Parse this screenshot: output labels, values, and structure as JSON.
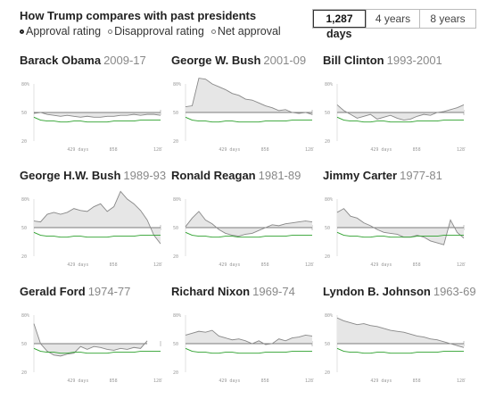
{
  "header": {
    "title": "How Trump compares with past presidents",
    "radios": [
      {
        "label": "Approval rating",
        "selected": true
      },
      {
        "label": "Disapproval rating",
        "selected": false
      },
      {
        "label": "Net approval",
        "selected": false
      }
    ],
    "toggle": [
      {
        "label": "1,287",
        "selected": true
      },
      {
        "label": "4 years",
        "selected": false
      },
      {
        "label": "8 years",
        "selected": false
      }
    ],
    "days_label": "days"
  },
  "colors": {
    "president_line": "#888888",
    "trump_line": "#2ca02c",
    "fill": "#e6e6e6",
    "axis": "#555555"
  },
  "chart_data": [
    {
      "type": "line",
      "name": "Barack Obama",
      "years": "2009-17",
      "ylim": [
        20,
        80
      ],
      "y_ticks": [
        "80%",
        "50",
        "20"
      ],
      "x_ticks": [
        "429 days",
        "858",
        "1287"
      ],
      "series": [
        {
          "values": [
            49,
            50,
            48,
            47,
            46,
            47,
            46,
            45,
            46,
            45,
            45,
            46,
            46,
            47,
            47,
            48,
            47,
            48,
            48,
            47
          ]
        },
        {
          "values": [
            45,
            42,
            41,
            41,
            40,
            40,
            41,
            41,
            40,
            40,
            40,
            40,
            41,
            41,
            41,
            41,
            42,
            42,
            42,
            42
          ]
        }
      ]
    },
    {
      "type": "line",
      "name": "George W. Bush",
      "years": "2001-09",
      "ylim": [
        20,
        80
      ],
      "y_ticks": [
        "80%",
        "50",
        "20"
      ],
      "x_ticks": [
        "429 days",
        "858",
        "1287"
      ],
      "series": [
        {
          "values": [
            56,
            57,
            86,
            85,
            80,
            77,
            74,
            70,
            68,
            64,
            63,
            60,
            57,
            55,
            52,
            53,
            50,
            49,
            50,
            48
          ]
        },
        {
          "values": [
            45,
            42,
            41,
            41,
            40,
            40,
            41,
            41,
            40,
            40,
            40,
            40,
            41,
            41,
            41,
            41,
            42,
            42,
            42,
            42
          ]
        }
      ]
    },
    {
      "type": "line",
      "name": "Bill Clinton",
      "years": "1993-2001",
      "ylim": [
        20,
        80
      ],
      "y_ticks": [
        "80%",
        "50",
        "20"
      ],
      "x_ticks": [
        "429 days",
        "858",
        "1287"
      ],
      "series": [
        {
          "values": [
            58,
            52,
            48,
            44,
            46,
            48,
            43,
            45,
            47,
            44,
            42,
            43,
            46,
            48,
            47,
            50,
            51,
            53,
            55,
            58
          ]
        },
        {
          "values": [
            45,
            42,
            41,
            41,
            40,
            40,
            41,
            41,
            40,
            40,
            40,
            40,
            41,
            41,
            41,
            41,
            42,
            42,
            42,
            42
          ]
        }
      ]
    },
    {
      "type": "line",
      "name": "George H.W. Bush",
      "years": "1989-93",
      "ylim": [
        20,
        80
      ],
      "y_ticks": [
        "80%",
        "50",
        "20"
      ],
      "x_ticks": [
        "429 days",
        "858",
        "1287"
      ],
      "series": [
        {
          "values": [
            57,
            56,
            64,
            66,
            64,
            66,
            70,
            68,
            67,
            72,
            75,
            67,
            72,
            88,
            80,
            75,
            68,
            58,
            42,
            33
          ]
        },
        {
          "values": [
            45,
            42,
            41,
            41,
            40,
            40,
            41,
            41,
            40,
            40,
            40,
            40,
            41,
            41,
            41,
            41,
            42,
            42,
            42,
            42
          ]
        }
      ]
    },
    {
      "type": "line",
      "name": "Ronald Reagan",
      "years": "1981-89",
      "ylim": [
        20,
        80
      ],
      "y_ticks": [
        "80%",
        "50",
        "20"
      ],
      "x_ticks": [
        "429 days",
        "858",
        "1287"
      ],
      "series": [
        {
          "values": [
            51,
            60,
            67,
            58,
            54,
            48,
            44,
            42,
            41,
            43,
            44,
            47,
            50,
            53,
            52,
            54,
            55,
            56,
            57,
            56
          ]
        },
        {
          "values": [
            45,
            42,
            41,
            41,
            40,
            40,
            41,
            41,
            40,
            40,
            40,
            40,
            41,
            41,
            41,
            41,
            42,
            42,
            42,
            42
          ]
        }
      ]
    },
    {
      "type": "line",
      "name": "Jimmy Carter",
      "years": "1977-81",
      "ylim": [
        20,
        80
      ],
      "y_ticks": [
        "80%",
        "50",
        "20"
      ],
      "x_ticks": [
        "429 days",
        "858",
        "1287"
      ],
      "series": [
        {
          "values": [
            66,
            70,
            62,
            60,
            55,
            52,
            48,
            45,
            44,
            43,
            40,
            40,
            42,
            40,
            36,
            34,
            32,
            58,
            45,
            39
          ]
        },
        {
          "values": [
            45,
            42,
            41,
            41,
            40,
            40,
            41,
            41,
            40,
            40,
            40,
            40,
            41,
            41,
            41,
            41,
            42,
            42,
            42,
            42
          ]
        }
      ]
    },
    {
      "type": "line",
      "name": "Gerald Ford",
      "years": "1974-77",
      "ylim": [
        20,
        80
      ],
      "y_ticks": [
        "80%",
        "50",
        "20"
      ],
      "x_ticks": [
        "429 days",
        "858",
        "1287"
      ],
      "series": [
        {
          "values": [
            71,
            50,
            42,
            38,
            37,
            39,
            40,
            47,
            44,
            47,
            46,
            44,
            43,
            45,
            44,
            46,
            45,
            53,
            null,
            null
          ]
        },
        {
          "values": [
            45,
            42,
            41,
            41,
            40,
            40,
            41,
            41,
            40,
            40,
            40,
            40,
            41,
            41,
            41,
            41,
            42,
            42,
            42,
            42
          ]
        }
      ]
    },
    {
      "type": "line",
      "name": "Richard Nixon",
      "years": "1969-74",
      "ylim": [
        20,
        80
      ],
      "y_ticks": [
        "80%",
        "50",
        "20"
      ],
      "x_ticks": [
        "429 days",
        "858",
        "1287"
      ],
      "series": [
        {
          "values": [
            59,
            61,
            63,
            62,
            64,
            58,
            56,
            54,
            55,
            53,
            50,
            53,
            49,
            50,
            55,
            53,
            56,
            57,
            59,
            58
          ]
        },
        {
          "values": [
            45,
            42,
            41,
            41,
            40,
            40,
            41,
            41,
            40,
            40,
            40,
            40,
            41,
            41,
            41,
            41,
            42,
            42,
            42,
            42
          ]
        }
      ]
    },
    {
      "type": "line",
      "name": "Lyndon B. Johnson",
      "years": "1963-69",
      "ylim": [
        20,
        80
      ],
      "y_ticks": [
        "80%",
        "50",
        "20"
      ],
      "x_ticks": [
        "429 days",
        "858",
        "1287"
      ],
      "series": [
        {
          "values": [
            77,
            74,
            72,
            70,
            71,
            69,
            68,
            66,
            64,
            63,
            62,
            60,
            58,
            57,
            55,
            54,
            52,
            50,
            48,
            46
          ]
        },
        {
          "values": [
            45,
            42,
            41,
            41,
            40,
            40,
            41,
            41,
            40,
            40,
            40,
            40,
            41,
            41,
            41,
            41,
            42,
            42,
            42,
            42
          ]
        }
      ]
    }
  ]
}
